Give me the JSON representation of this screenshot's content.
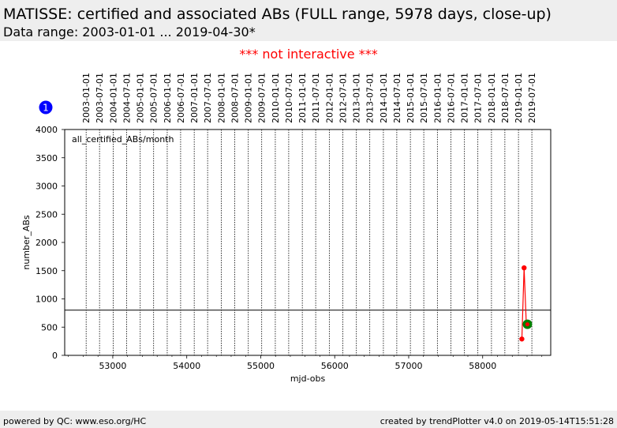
{
  "header": {
    "title": "MATISSE: certified and associated ABs (FULL range, 5978 days, close-up)",
    "subtitle": "Data range: 2003-01-01 ... 2019-04-30*"
  },
  "notice": "*** not interactive ***",
  "badge": "1",
  "footer": {
    "left": "powered by QC: www.eso.org/HC",
    "right": "created by trendPlotter v4.0 on 2019-05-14T15:51:28"
  },
  "colors": {
    "series": "#ff0000",
    "latest": "#008000",
    "badge": "#0000ff",
    "notice": "#ff0000",
    "band": "#eeeeee"
  },
  "chart_data": {
    "type": "line",
    "panel_label": "all_certified_ABs/month",
    "xlabel": "mjd-obs",
    "ylabel": "number_ABs",
    "xlim": [
      52350,
      58920
    ],
    "ylim": [
      0,
      4000
    ],
    "x_ticks": [
      53000,
      54000,
      55000,
      56000,
      57000,
      58000
    ],
    "y_ticks": [
      0,
      500,
      1000,
      1500,
      2000,
      2500,
      3000,
      3500,
      4000
    ],
    "reference_line": 800,
    "date_ticks": [
      {
        "label": "2003-01-01",
        "mjd": 52640
      },
      {
        "label": "2003-07-01",
        "mjd": 52821
      },
      {
        "label": "2004-01-01",
        "mjd": 53005
      },
      {
        "label": "2004-07-01",
        "mjd": 53187
      },
      {
        "label": "2005-01-01",
        "mjd": 53371
      },
      {
        "label": "2005-07-01",
        "mjd": 53552
      },
      {
        "label": "2006-01-01",
        "mjd": 53736
      },
      {
        "label": "2006-07-01",
        "mjd": 53917
      },
      {
        "label": "2007-01-01",
        "mjd": 54101
      },
      {
        "label": "2007-07-01",
        "mjd": 54282
      },
      {
        "label": "2008-01-01",
        "mjd": 54466
      },
      {
        "label": "2008-07-01",
        "mjd": 54648
      },
      {
        "label": "2009-01-01",
        "mjd": 54832
      },
      {
        "label": "2009-07-01",
        "mjd": 55013
      },
      {
        "label": "2010-01-01",
        "mjd": 55197
      },
      {
        "label": "2010-07-01",
        "mjd": 55378
      },
      {
        "label": "2011-01-01",
        "mjd": 55562
      },
      {
        "label": "2011-07-01",
        "mjd": 55743
      },
      {
        "label": "2012-01-01",
        "mjd": 55927
      },
      {
        "label": "2012-07-01",
        "mjd": 56109
      },
      {
        "label": "2013-01-01",
        "mjd": 56293
      },
      {
        "label": "2013-07-01",
        "mjd": 56474
      },
      {
        "label": "2014-01-01",
        "mjd": 56658
      },
      {
        "label": "2014-07-01",
        "mjd": 56839
      },
      {
        "label": "2015-01-01",
        "mjd": 57023
      },
      {
        "label": "2015-07-01",
        "mjd": 57204
      },
      {
        "label": "2016-01-01",
        "mjd": 57388
      },
      {
        "label": "2016-07-01",
        "mjd": 57570
      },
      {
        "label": "2017-01-01",
        "mjd": 57754
      },
      {
        "label": "2017-07-01",
        "mjd": 57935
      },
      {
        "label": "2018-01-01",
        "mjd": 58119
      },
      {
        "label": "2018-07-01",
        "mjd": 58300
      },
      {
        "label": "2019-01-01",
        "mjd": 58484
      },
      {
        "label": "2019-07-01",
        "mjd": 58665
      }
    ],
    "series": [
      {
        "x": [
          58530,
          58560,
          58590,
          58605
        ],
        "y": [
          290,
          1550,
          550,
          550
        ]
      }
    ],
    "latest_point": {
      "x": 58605,
      "y": 550
    }
  }
}
